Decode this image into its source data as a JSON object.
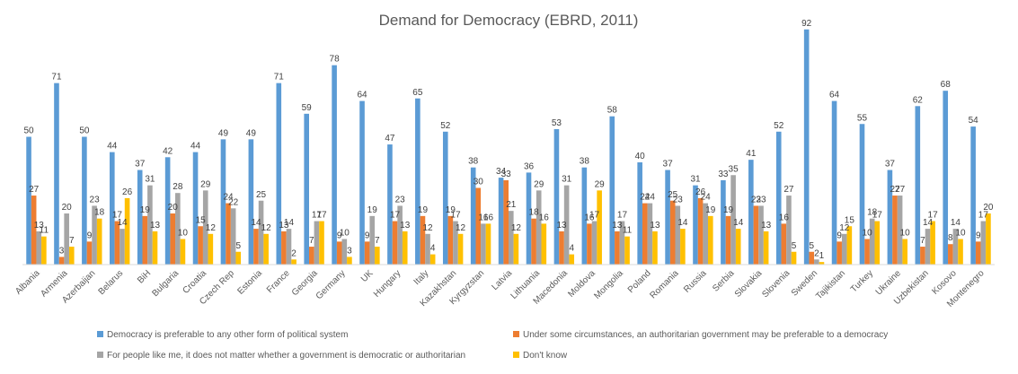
{
  "chart_data": {
    "type": "bar",
    "title": "Demand for Democracy (EBRD, 2011)",
    "xlabel": "",
    "ylabel": "",
    "ylim": [
      0,
      100
    ],
    "grid": false,
    "legend_position": "bottom",
    "categories": [
      "Albania",
      "Armenia",
      "Azerbaijan",
      "Belarus",
      "BiH",
      "Bulgaria",
      "Croatia",
      "Czech Rep",
      "Estonia",
      "France",
      "Georgia",
      "Germany",
      "UK",
      "Hungary",
      "Italy",
      "Kazakhstan",
      "Kyrgyzstan",
      "Latvia",
      "Lithuania",
      "Macedonia",
      "Moldova",
      "Mongolia",
      "Poland",
      "Romania",
      "Russia",
      "Serbia",
      "Slovakia",
      "Slovenia",
      "Sweden",
      "Tajikistan",
      "Turkey",
      "Ukraine",
      "Uzbekistan",
      "Kosovo",
      "Montenegro"
    ],
    "series": [
      {
        "name": "Democracy is preferable to any other form of political system",
        "color": "#5B9BD5",
        "values": [
          50,
          71,
          50,
          44,
          37,
          42,
          44,
          49,
          49,
          71,
          59,
          78,
          64,
          47,
          65,
          52,
          38,
          34,
          36,
          53,
          38,
          58,
          40,
          37,
          31,
          33,
          41,
          52,
          92,
          64,
          55,
          37,
          62,
          68,
          54
        ]
      },
      {
        "name": "Under some circumstances, an authoritarian government may be preferable to a democracy",
        "color": "#ED7D31",
        "values": [
          27,
          3,
          9,
          17,
          19,
          20,
          15,
          24,
          14,
          13,
          7,
          9,
          9,
          17,
          19,
          19,
          30,
          33,
          18,
          13,
          16,
          13,
          24,
          25,
          26,
          19,
          23,
          16,
          5,
          9,
          10,
          27,
          7,
          8,
          9
        ]
      },
      {
        "name": "For people like me, it does not matter whether a government is democratic or authoritarian",
        "color": "#A5A5A5",
        "values": [
          13,
          20,
          23,
          14,
          31,
          28,
          29,
          22,
          25,
          14,
          17,
          10,
          19,
          23,
          12,
          17,
          16,
          21,
          29,
          31,
          17,
          17,
          24,
          23,
          24,
          35,
          23,
          27,
          2,
          12,
          18,
          27,
          14,
          14,
          17
        ]
      },
      {
        "name": "Don't know",
        "color": "#FFC000",
        "values": [
          11,
          7,
          18,
          26,
          13,
          10,
          12,
          5,
          12,
          2,
          17,
          3,
          7,
          13,
          4,
          12,
          16,
          12,
          16,
          4,
          29,
          11,
          13,
          14,
          19,
          14,
          13,
          5,
          1,
          15,
          17,
          10,
          17,
          10,
          20
        ]
      }
    ]
  }
}
